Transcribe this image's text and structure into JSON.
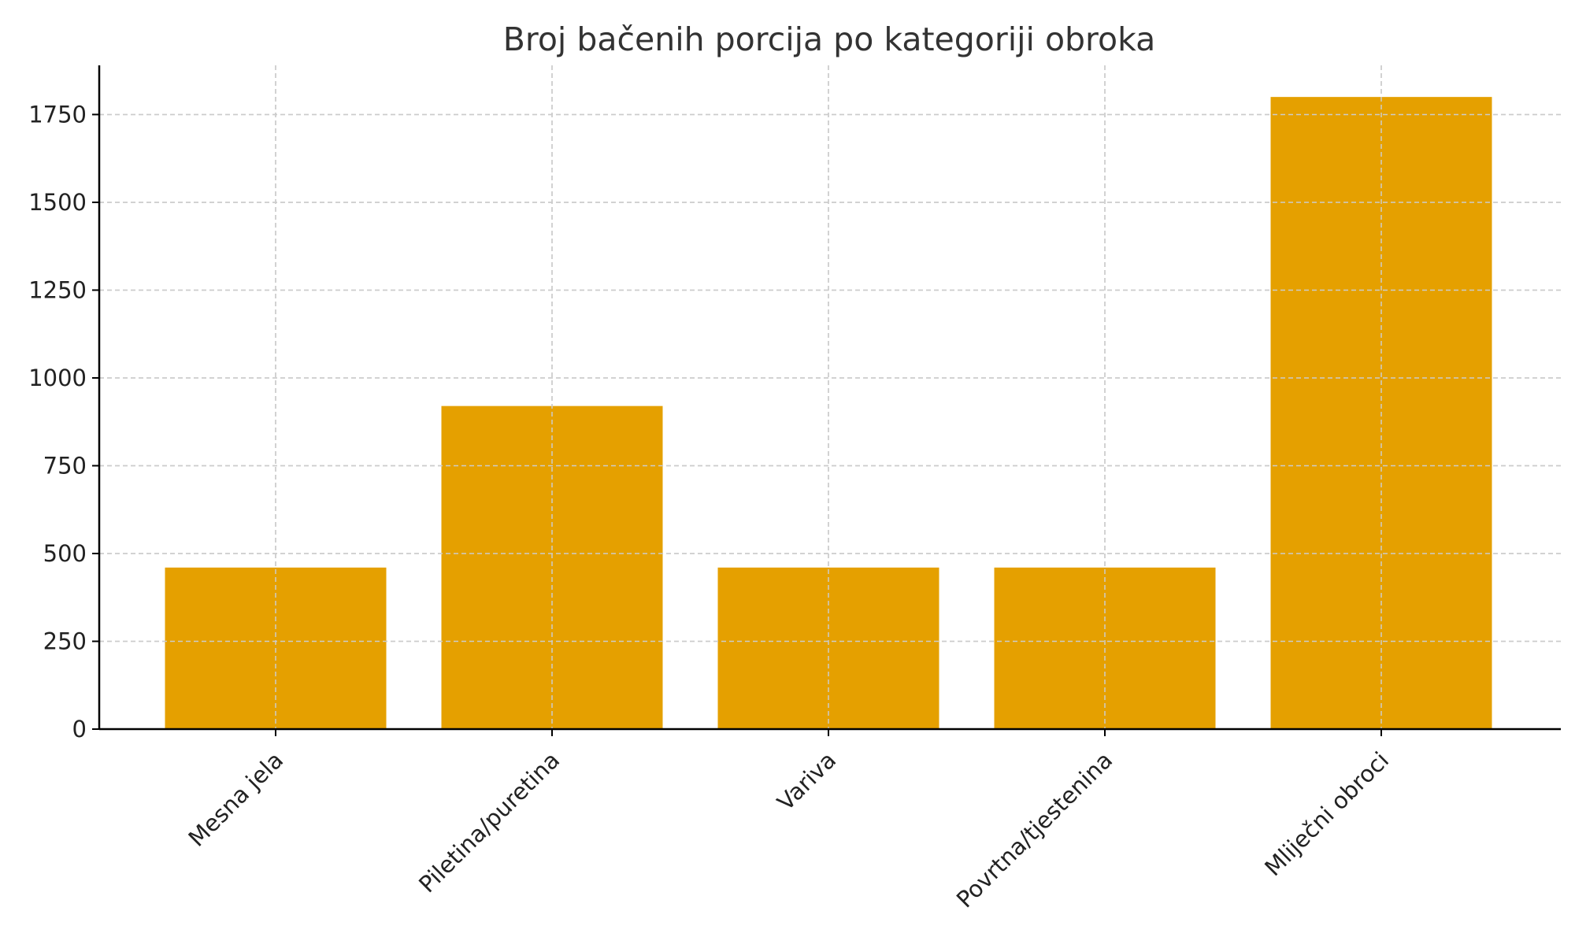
{
  "chart_data": {
    "type": "bar",
    "title": "Broj bačenih porcija po kategoriji obroka",
    "xlabel": "",
    "ylabel": "",
    "categories": [
      "Mesna jela",
      "Piletina/puretina",
      "Variva",
      "Povrtna/tjestenina",
      "Mliječni obroci"
    ],
    "values": [
      460,
      920,
      460,
      460,
      1800
    ],
    "ylim": [
      0,
      1890
    ],
    "yticks": [
      0,
      250,
      500,
      750,
      1000,
      1250,
      1500,
      1750
    ],
    "grid": true,
    "bar_color": "#E5A000",
    "grid_color": "#cccccc",
    "axis_color": "#000000"
  }
}
